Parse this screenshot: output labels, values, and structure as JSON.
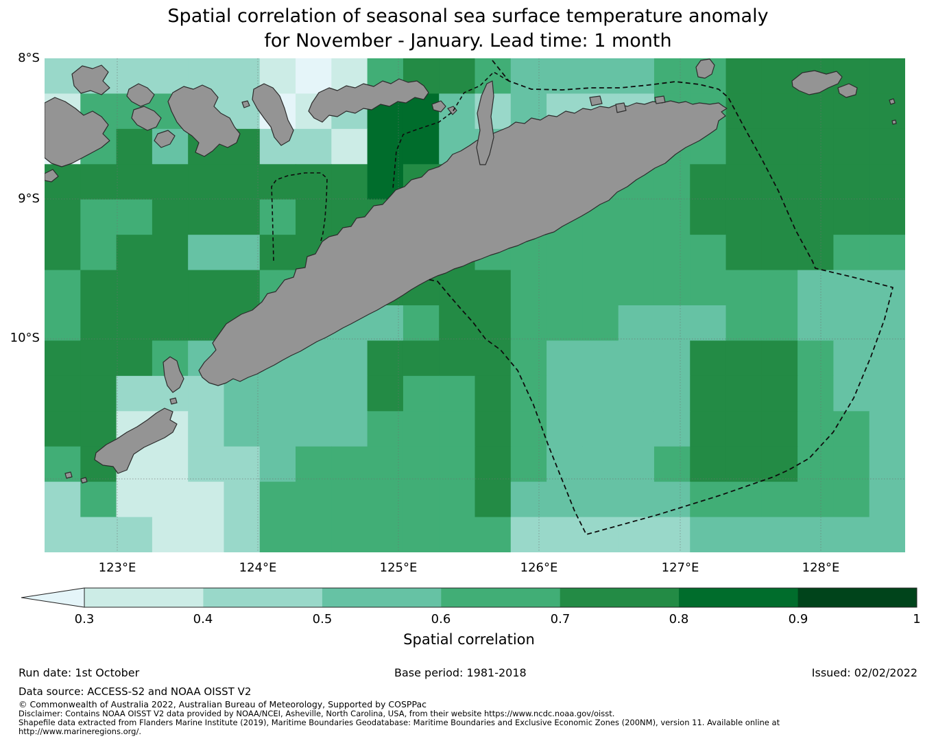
{
  "title": {
    "line1": "Spatial correlation of seasonal sea surface temperature anomaly",
    "line2": "for November - January. Lead time: 1 month"
  },
  "map": {
    "x_ticks": [
      "123°E",
      "124°E",
      "125°E",
      "126°E",
      "127°E",
      "128°E"
    ],
    "y_ticks": [
      "8°S",
      "9°S",
      "10°S"
    ],
    "land_color": "#949494"
  },
  "colorbar": {
    "label": "Spatial correlation",
    "ticks": [
      "0.3",
      "0.4",
      "0.5",
      "0.6",
      "0.7",
      "0.8",
      "0.9",
      "1"
    ],
    "arrow_color": "#e5f5f9",
    "segments": [
      "#ccece6",
      "#99d8c9",
      "#66c2a4",
      "#41ae76",
      "#238b45",
      "#006d2c",
      "#00441b"
    ]
  },
  "chart_data": {
    "type": "heatmap",
    "title": "Spatial correlation of seasonal sea surface temperature anomaly for November - January. Lead time: 1 month",
    "colorbar_label": "Spatial correlation",
    "lon_range_deg_east": [
      122.48,
      128.6
    ],
    "lat_range_deg_south": [
      8.0,
      11.5
    ],
    "lon_tick_labels": [
      "123°E",
      "124°E",
      "125°E",
      "126°E",
      "127°E",
      "128°E"
    ],
    "lat_tick_labels": [
      "8°S",
      "9°S",
      "10°S"
    ],
    "cell_size_deg": 0.25,
    "bin_edges": [
      0.3,
      0.4,
      0.5,
      0.6,
      0.7,
      0.8,
      0.9,
      1.0
    ],
    "bin_labels": [
      "<0.3",
      "0.3-0.4",
      "0.4-0.5",
      "0.5-0.6",
      "0.6-0.7",
      "0.7-0.8",
      "0.8-0.9",
      "0.9-1.0"
    ],
    "palette": [
      "#e5f5f9",
      "#ccece6",
      "#99d8c9",
      "#66c2a4",
      "#41ae76",
      "#238b45",
      "#006d2c",
      "#00441b"
    ],
    "grid_note": "rows north to south from 8S in 0.25 deg bands; cols west to east from 122.5E; digit = palette/bin index",
    "grid_rows": [
      "222222101455433334455555",
      "144422012663232224455555",
      "045355221663333224455555",
      "555555555655334444555555",
      "544555455555444444555555",
      "545533555555444444455544",
      "455555445555544444444333",
      "455555433345544433344333",
      "555433333555543333555433",
      "552223333544543333555433",
      "551123333444543333555443",
      "451122344444543334555443",
      "241112444444533333444443",
      "222112444444422222333333"
    ]
  },
  "footer": {
    "run_date": "Run date: 1st October",
    "base_period": "Base period: 1981-2018",
    "issued": "Issued: 02/02/2022",
    "data_source": "Data source: ACCESS-S2 and NOAA OISST V2",
    "copyright": "© Commonwealth of Australia 2022, Australian Bureau of Meteorology, Supported by COSPPac",
    "disclaimer": "Disclaimer: Contains NOAA OISST V2 data provided by NOAA/NCEI, Asheville, North Carolina, USA, from their website https://www.ncdc.noaa.gov/oisst.",
    "shapefile_line1": "Shapefile data extracted from Flanders Marine Institute (2019), Maritime Boundaries Geodatabase: Maritime Boundaries and Exclusive Economic Zones (200NM), version 11. Available online at",
    "shapefile_line2": "http://www.marineregions.org/."
  }
}
